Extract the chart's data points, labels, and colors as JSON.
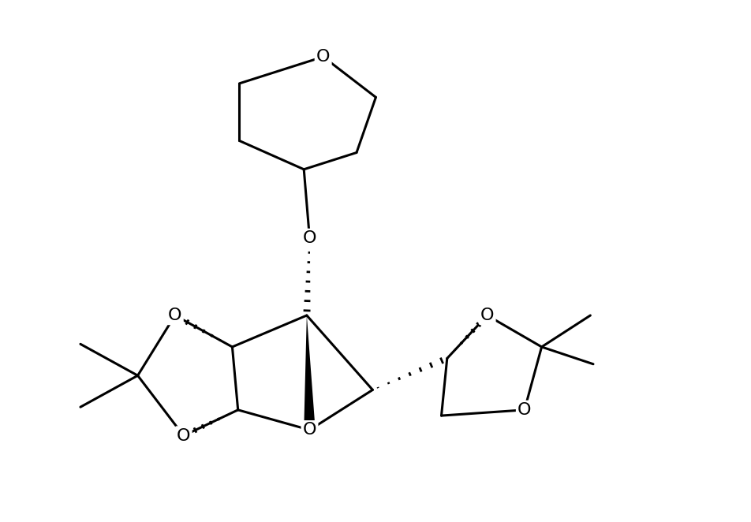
{
  "background": "#ffffff",
  "line_color": "#000000",
  "line_width": 2.2,
  "font_size": 16,
  "figsize": [
    9.52,
    6.62
  ],
  "dpi": 100,
  "xlim": [
    -1,
    11
  ],
  "ylim": [
    -0.5,
    8.5
  ]
}
